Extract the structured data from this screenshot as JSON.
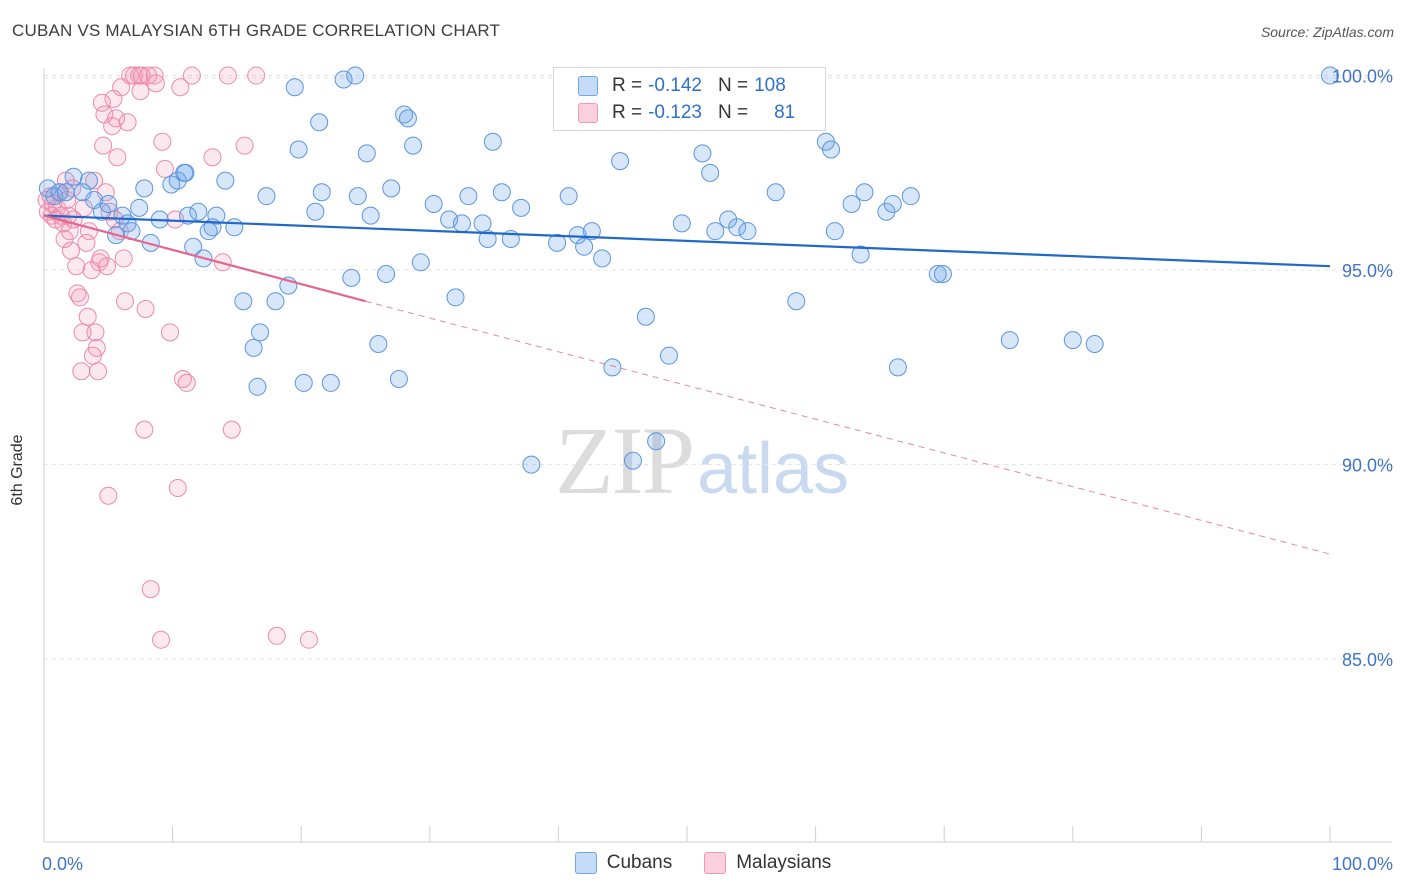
{
  "title": "CUBAN VS MALAYSIAN 6TH GRADE CORRELATION CHART",
  "source": "Source: ZipAtlas.com",
  "watermark": {
    "zip": "ZIP",
    "atlas": "atlas"
  },
  "legend": {
    "rows": [
      {
        "r_label": "R =",
        "r_value": "-0.142",
        "n_label": "N =",
        "n_value": "108"
      },
      {
        "r_label": "R =",
        "r_value": "-0.123",
        "n_label": "N =",
        "n_value": "81"
      }
    ]
  },
  "colors": {
    "cubans": "#6fa6e8",
    "malaysians": "#f197b5",
    "cubans_line": "#2268c8",
    "malaysians_line": "#e4668f",
    "tick_text": "#3f74c8"
  },
  "chart_data": {
    "type": "scatter",
    "title": "CUBAN VS MALAYSIAN 6TH GRADE CORRELATION CHART",
    "xlabel": "",
    "ylabel": "6th Grade",
    "xlim": [
      0,
      100
    ],
    "ylim": [
      80.3,
      100.4
    ],
    "x_tick_labels": [
      "0.0%",
      "100.0%"
    ],
    "y_ticks": [
      85,
      90,
      95,
      100
    ],
    "y_tick_labels": [
      "85.0%",
      "90.0%",
      "95.0%",
      "100.0%"
    ],
    "grid": true,
    "legend_position": "top-center",
    "series": [
      {
        "name": "Cubans",
        "trend": {
          "x": [
            0,
            100
          ],
          "y": [
            96.4,
            95.1
          ],
          "dashed_to": null
        },
        "points": [
          [
            0.3,
            97.1
          ],
          [
            0.8,
            96.9
          ],
          [
            1.2,
            97.0
          ],
          [
            1.7,
            97.0
          ],
          [
            2.3,
            97.4
          ],
          [
            3.0,
            97.0
          ],
          [
            3.5,
            97.3
          ],
          [
            3.9,
            96.8
          ],
          [
            4.5,
            96.5
          ],
          [
            5.0,
            96.7
          ],
          [
            5.6,
            95.9
          ],
          [
            6.1,
            96.4
          ],
          [
            6.5,
            96.2
          ],
          [
            6.8,
            96.0
          ],
          [
            7.4,
            96.6
          ],
          [
            7.8,
            97.1
          ],
          [
            8.3,
            95.7
          ],
          [
            9.0,
            96.3
          ],
          [
            9.9,
            97.2
          ],
          [
            10.9,
            97.5
          ],
          [
            10.4,
            97.3
          ],
          [
            11.0,
            97.5
          ],
          [
            11.2,
            96.4
          ],
          [
            11.6,
            95.6
          ],
          [
            12.0,
            96.5
          ],
          [
            12.4,
            95.3
          ],
          [
            12.8,
            96.0
          ],
          [
            13.1,
            96.1
          ],
          [
            13.4,
            96.4
          ],
          [
            14.1,
            97.3
          ],
          [
            14.8,
            96.1
          ],
          [
            15.5,
            94.2
          ],
          [
            16.3,
            93.0
          ],
          [
            16.6,
            92.0
          ],
          [
            16.8,
            93.4
          ],
          [
            17.3,
            96.9
          ],
          [
            18.0,
            94.2
          ],
          [
            19.0,
            94.6
          ],
          [
            19.5,
            99.7
          ],
          [
            19.8,
            98.1
          ],
          [
            20.2,
            92.1
          ],
          [
            21.1,
            96.5
          ],
          [
            21.4,
            98.8
          ],
          [
            21.6,
            97.0
          ],
          [
            22.3,
            92.1
          ],
          [
            23.3,
            99.9
          ],
          [
            23.9,
            94.8
          ],
          [
            24.2,
            100.0
          ],
          [
            24.4,
            96.9
          ],
          [
            25.1,
            98.0
          ],
          [
            25.4,
            96.4
          ],
          [
            26.0,
            93.1
          ],
          [
            26.6,
            94.9
          ],
          [
            27.0,
            97.1
          ],
          [
            27.6,
            92.2
          ],
          [
            28.0,
            99.0
          ],
          [
            28.3,
            98.9
          ],
          [
            28.7,
            98.2
          ],
          [
            29.3,
            95.2
          ],
          [
            30.3,
            96.7
          ],
          [
            31.5,
            96.3
          ],
          [
            32.0,
            94.3
          ],
          [
            32.5,
            96.2
          ],
          [
            33.0,
            96.9
          ],
          [
            34.1,
            96.2
          ],
          [
            34.5,
            95.8
          ],
          [
            34.9,
            98.3
          ],
          [
            35.6,
            97.0
          ],
          [
            36.3,
            95.8
          ],
          [
            37.1,
            96.6
          ],
          [
            37.9,
            90.0
          ],
          [
            39.9,
            95.7
          ],
          [
            40.8,
            96.9
          ],
          [
            41.5,
            95.9
          ],
          [
            42.0,
            95.6
          ],
          [
            42.6,
            96.0
          ],
          [
            43.4,
            95.3
          ],
          [
            44.2,
            92.5
          ],
          [
            44.8,
            97.8
          ],
          [
            45.8,
            90.1
          ],
          [
            46.8,
            93.8
          ],
          [
            47.6,
            90.6
          ],
          [
            48.6,
            92.8
          ],
          [
            49.6,
            96.2
          ],
          [
            51.2,
            98.0
          ],
          [
            51.8,
            97.5
          ],
          [
            52.2,
            96.0
          ],
          [
            53.2,
            96.3
          ],
          [
            53.9,
            96.1
          ],
          [
            54.7,
            96.0
          ],
          [
            56.9,
            97.0
          ],
          [
            58.5,
            94.2
          ],
          [
            60.8,
            98.3
          ],
          [
            61.2,
            98.1
          ],
          [
            61.5,
            96.0
          ],
          [
            62.8,
            96.7
          ],
          [
            63.5,
            95.4
          ],
          [
            63.8,
            97.0
          ],
          [
            65.5,
            96.5
          ],
          [
            66.0,
            96.7
          ],
          [
            66.4,
            92.5
          ],
          [
            67.4,
            96.9
          ],
          [
            69.5,
            94.9
          ],
          [
            69.9,
            94.9
          ],
          [
            75.1,
            93.2
          ],
          [
            80.0,
            93.2
          ],
          [
            81.7,
            93.1
          ],
          [
            100.0,
            100.0
          ]
        ]
      },
      {
        "name": "Malaysians",
        "trend": {
          "x": [
            0,
            25
          ],
          "y": [
            96.4,
            94.2
          ],
          "dashed_to": [
            100,
            87.7
          ]
        },
        "points": [
          [
            0.2,
            96.8
          ],
          [
            0.3,
            96.5
          ],
          [
            0.5,
            96.9
          ],
          [
            0.6,
            96.4
          ],
          [
            0.7,
            96.7
          ],
          [
            0.9,
            96.3
          ],
          [
            1.0,
            96.6
          ],
          [
            1.2,
            97.0
          ],
          [
            1.3,
            96.4
          ],
          [
            1.5,
            96.2
          ],
          [
            1.6,
            95.8
          ],
          [
            1.7,
            97.3
          ],
          [
            1.8,
            96.8
          ],
          [
            1.9,
            96.4
          ],
          [
            2.0,
            96.0
          ],
          [
            2.1,
            95.5
          ],
          [
            2.2,
            97.1
          ],
          [
            2.3,
            96.3
          ],
          [
            2.5,
            95.1
          ],
          [
            2.6,
            94.4
          ],
          [
            2.8,
            94.3
          ],
          [
            2.9,
            92.4
          ],
          [
            3.0,
            93.4
          ],
          [
            3.1,
            96.6
          ],
          [
            3.3,
            95.7
          ],
          [
            3.4,
            93.8
          ],
          [
            3.5,
            96.0
          ],
          [
            3.7,
            95.0
          ],
          [
            3.8,
            92.8
          ],
          [
            3.9,
            97.3
          ],
          [
            4.0,
            93.4
          ],
          [
            4.1,
            93.0
          ],
          [
            4.2,
            92.4
          ],
          [
            4.3,
            95.2
          ],
          [
            4.4,
            95.3
          ],
          [
            4.5,
            99.3
          ],
          [
            4.6,
            98.2
          ],
          [
            4.7,
            99.0
          ],
          [
            4.8,
            97.0
          ],
          [
            4.9,
            95.1
          ],
          [
            5.0,
            89.2
          ],
          [
            5.1,
            96.5
          ],
          [
            5.3,
            98.7
          ],
          [
            5.4,
            99.4
          ],
          [
            5.5,
            96.3
          ],
          [
            5.6,
            98.9
          ],
          [
            5.7,
            97.9
          ],
          [
            5.9,
            96.0
          ],
          [
            6.0,
            99.7
          ],
          [
            6.2,
            95.3
          ],
          [
            6.3,
            94.2
          ],
          [
            6.5,
            98.8
          ],
          [
            6.7,
            100.0
          ],
          [
            7.0,
            100.0
          ],
          [
            7.4,
            100.0
          ],
          [
            7.5,
            99.6
          ],
          [
            7.6,
            100.0
          ],
          [
            7.8,
            90.9
          ],
          [
            7.9,
            94.0
          ],
          [
            8.1,
            100.0
          ],
          [
            8.3,
            86.8
          ],
          [
            8.6,
            100.0
          ],
          [
            8.7,
            99.8
          ],
          [
            9.1,
            85.5
          ],
          [
            9.2,
            98.3
          ],
          [
            9.4,
            97.6
          ],
          [
            9.8,
            93.4
          ],
          [
            10.2,
            96.3
          ],
          [
            10.4,
            89.4
          ],
          [
            10.6,
            99.7
          ],
          [
            10.8,
            92.2
          ],
          [
            11.1,
            92.1
          ],
          [
            11.5,
            100.0
          ],
          [
            13.1,
            97.9
          ],
          [
            13.9,
            95.2
          ],
          [
            14.3,
            100.0
          ],
          [
            14.6,
            90.9
          ],
          [
            15.6,
            98.2
          ],
          [
            16.5,
            100.0
          ],
          [
            18.1,
            85.6
          ],
          [
            20.6,
            85.5
          ]
        ]
      }
    ]
  },
  "bottom_legend": [
    {
      "name": "Cubans"
    },
    {
      "name": "Malaysians"
    }
  ]
}
